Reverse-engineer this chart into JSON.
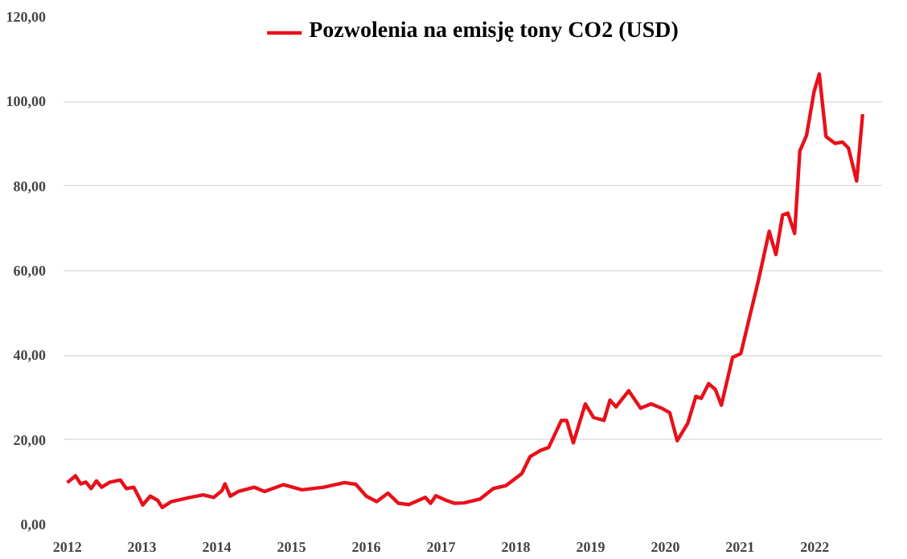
{
  "chart_data": {
    "type": "line",
    "x": [
      2012.0,
      2012.11,
      2012.18,
      2012.25,
      2012.32,
      2012.39,
      2012.46,
      2012.57,
      2012.71,
      2012.79,
      2012.89,
      2012.96,
      2013.01,
      2013.11,
      2013.21,
      2013.27,
      2013.39,
      2013.64,
      2013.82,
      2013.96,
      2014.07,
      2014.11,
      2014.18,
      2014.29,
      2014.5,
      2014.64,
      2014.89,
      2015.14,
      2015.43,
      2015.71,
      2015.86,
      2016.0,
      2016.14,
      2016.29,
      2016.43,
      2016.57,
      2016.79,
      2016.86,
      2016.93,
      2017.07,
      2017.18,
      2017.31,
      2017.52,
      2017.7,
      2017.87,
      2018.08,
      2018.19,
      2018.33,
      2018.44,
      2018.61,
      2018.68,
      2018.77,
      2018.93,
      2019.04,
      2019.18,
      2019.26,
      2019.34,
      2019.51,
      2019.67,
      2019.81,
      2019.95,
      2020.06,
      2020.16,
      2020.3,
      2020.41,
      2020.48,
      2020.58,
      2020.67,
      2020.75,
      2020.9,
      2021.01,
      2021.25,
      2021.39,
      2021.48,
      2021.57,
      2021.64,
      2021.73,
      2021.8,
      2021.89,
      2021.99,
      2022.06,
      2022.15,
      2022.27,
      2022.37,
      2022.45,
      2022.56,
      2022.64
    ],
    "series": [
      {
        "name": "Pozwolenia na emisję tony CO2 (USD)",
        "color": "#e8101a",
        "values": [
          9.9,
          11.5,
          9.6,
          10.0,
          8.5,
          10.3,
          8.8,
          10.0,
          10.5,
          8.5,
          8.8,
          6.4,
          4.6,
          6.7,
          5.7,
          4.0,
          5.4,
          6.4,
          7.0,
          6.4,
          8.0,
          9.6,
          6.7,
          7.8,
          8.8,
          7.8,
          9.4,
          8.2,
          8.8,
          9.9,
          9.5,
          6.7,
          5.4,
          7.4,
          5.0,
          4.7,
          6.4,
          5.0,
          6.8,
          5.7,
          5.0,
          5.1,
          6.0,
          8.5,
          9.2,
          12.0,
          16.0,
          17.5,
          18.2,
          24.6,
          24.6,
          19.3,
          28.5,
          25.3,
          24.6,
          29.4,
          27.8,
          31.6,
          27.5,
          28.5,
          27.5,
          26.4,
          19.8,
          23.9,
          30.3,
          29.8,
          33.3,
          31.9,
          28.2,
          39.5,
          40.4,
          58.0,
          69.3,
          63.8,
          73.2,
          73.6,
          68.8,
          88.3,
          92.0,
          102.3,
          106.5,
          91.7,
          90.1,
          90.4,
          89.0,
          81.2,
          97.0
        ]
      }
    ],
    "xlim": [
      2011.95,
      2022.9
    ],
    "xticks": [
      2012,
      2013,
      2014,
      2015,
      2016,
      2017,
      2018,
      2019,
      2020,
      2021,
      2022
    ],
    "ylim": [
      0,
      120
    ],
    "yticks": [
      {
        "value": 0,
        "label": "0,00"
      },
      {
        "value": 20,
        "label": "20,00"
      },
      {
        "value": 40,
        "label": "40,00"
      },
      {
        "value": 60,
        "label": "60,00"
      },
      {
        "value": 80,
        "label": "80,00"
      },
      {
        "value": 100,
        "label": "100,00"
      },
      {
        "value": 120,
        "label": "120,00"
      }
    ],
    "grid": "y",
    "legend": "top",
    "line_style": "solid",
    "marker": "none"
  }
}
